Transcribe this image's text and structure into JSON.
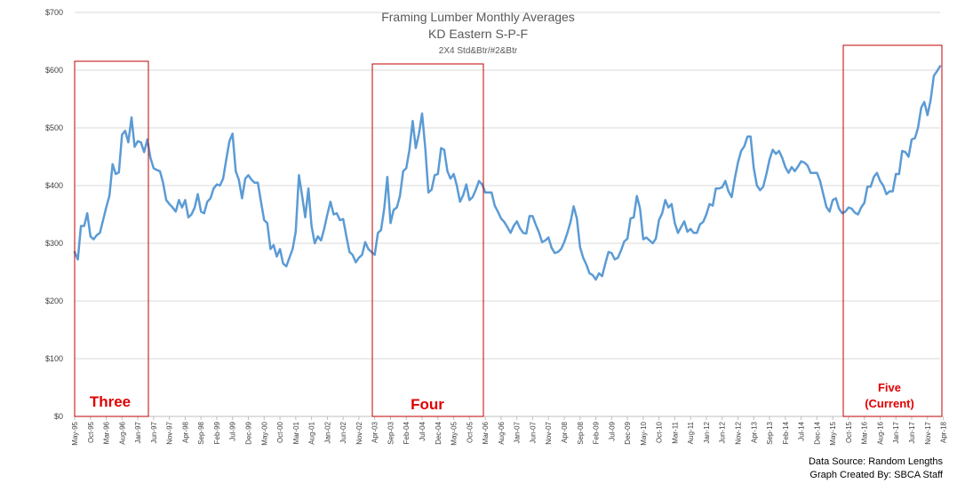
{
  "chart_data": {
    "type": "line",
    "title": "Framing Lumber Monthly Averages",
    "subtitle": "KD Eastern S-P-F",
    "subtitle2": "2X4 Std&Btr/#2&Btr",
    "ylim": [
      0,
      700
    ],
    "ytick_labels": [
      "$0",
      "$100",
      "$200",
      "$300",
      "$400",
      "$500",
      "$600",
      "$700"
    ],
    "xtick_labels": [
      "May-95",
      "Oct-95",
      "Mar-96",
      "Aug-96",
      "Jan-97",
      "Jun-97",
      "Nov-97",
      "Apr-98",
      "Sep-98",
      "Feb-99",
      "Jul-99",
      "Dec-99",
      "May-00",
      "Oct-00",
      "Mar-01",
      "Aug-01",
      "Jan-02",
      "Jun-02",
      "Nov-02",
      "Apr-03",
      "Sep-03",
      "Feb-04",
      "Jul-04",
      "Dec-04",
      "May-05",
      "Oct-05",
      "Mar-06",
      "Aug-06",
      "Jan-07",
      "Jun-07",
      "Nov-07",
      "Apr-08",
      "Sep-08",
      "Feb-09",
      "Jul-09",
      "Dec-09",
      "May-10",
      "Oct-10",
      "Mar-11",
      "Aug-11",
      "Jan-12",
      "Jun-12",
      "Nov-12",
      "Apr-13",
      "Sep-13",
      "Feb-14",
      "Jul-14",
      "Dec-14",
      "May-15",
      "Oct-15",
      "Mar-16",
      "Aug-16",
      "Jan-17",
      "Jun-17",
      "Nov-17",
      "Apr-18"
    ],
    "grid": true,
    "series": [
      {
        "color": "#5b9bd5",
        "keypoints": [
          [
            0,
            285
          ],
          [
            1,
            272
          ],
          [
            2,
            330
          ],
          [
            3,
            330
          ],
          [
            4,
            352
          ],
          [
            5,
            312
          ],
          [
            6,
            307
          ],
          [
            7,
            314
          ],
          [
            8,
            318
          ],
          [
            9,
            340
          ],
          [
            10,
            362
          ],
          [
            11,
            382
          ],
          [
            12,
            437
          ],
          [
            13,
            420
          ],
          [
            14,
            423
          ],
          [
            15,
            488
          ],
          [
            16,
            495
          ],
          [
            17,
            475
          ],
          [
            18,
            518
          ],
          [
            19,
            467
          ],
          [
            20,
            477
          ],
          [
            21,
            475
          ],
          [
            22,
            458
          ],
          [
            23,
            480
          ],
          [
            24,
            448
          ],
          [
            25,
            430
          ],
          [
            26,
            427
          ],
          [
            27,
            425
          ],
          [
            28,
            405
          ],
          [
            29,
            375
          ],
          [
            30,
            368
          ],
          [
            31,
            362
          ],
          [
            32,
            355
          ],
          [
            33,
            375
          ],
          [
            34,
            362
          ],
          [
            35,
            375
          ],
          [
            36,
            345
          ],
          [
            37,
            350
          ],
          [
            38,
            362
          ],
          [
            39,
            385
          ],
          [
            40,
            355
          ],
          [
            41,
            352
          ],
          [
            42,
            372
          ],
          [
            43,
            378
          ],
          [
            44,
            395
          ],
          [
            45,
            402
          ],
          [
            46,
            400
          ],
          [
            47,
            412
          ],
          [
            48,
            445
          ],
          [
            49,
            477
          ],
          [
            50,
            490
          ],
          [
            51,
            425
          ],
          [
            52,
            410
          ],
          [
            53,
            378
          ],
          [
            54,
            412
          ],
          [
            55,
            418
          ],
          [
            56,
            410
          ],
          [
            57,
            405
          ],
          [
            58,
            405
          ],
          [
            59,
            372
          ],
          [
            60,
            340
          ],
          [
            61,
            335
          ],
          [
            62,
            290
          ],
          [
            63,
            297
          ],
          [
            64,
            277
          ],
          [
            65,
            290
          ],
          [
            66,
            265
          ],
          [
            67,
            260
          ],
          [
            68,
            275
          ],
          [
            69,
            290
          ],
          [
            70,
            320
          ],
          [
            71,
            418
          ],
          [
            72,
            383
          ],
          [
            73,
            345
          ],
          [
            74,
            395
          ],
          [
            75,
            330
          ],
          [
            76,
            300
          ],
          [
            77,
            312
          ],
          [
            78,
            305
          ],
          [
            79,
            325
          ],
          [
            80,
            350
          ],
          [
            81,
            372
          ],
          [
            82,
            350
          ],
          [
            83,
            352
          ],
          [
            84,
            340
          ],
          [
            85,
            342
          ],
          [
            86,
            313
          ],
          [
            87,
            285
          ],
          [
            88,
            280
          ],
          [
            89,
            267
          ],
          [
            90,
            275
          ],
          [
            91,
            280
          ],
          [
            92,
            302
          ],
          [
            93,
            290
          ],
          [
            94,
            285
          ],
          [
            95,
            280
          ],
          [
            96,
            318
          ],
          [
            97,
            323
          ],
          [
            98,
            360
          ],
          [
            99,
            415
          ],
          [
            100,
            335
          ],
          [
            101,
            358
          ],
          [
            102,
            362
          ],
          [
            103,
            382
          ],
          [
            104,
            425
          ],
          [
            105,
            430
          ],
          [
            106,
            462
          ],
          [
            107,
            512
          ],
          [
            108,
            465
          ],
          [
            109,
            490
          ],
          [
            110,
            525
          ],
          [
            111,
            465
          ],
          [
            112,
            388
          ],
          [
            113,
            393
          ],
          [
            114,
            418
          ],
          [
            115,
            420
          ],
          [
            116,
            465
          ],
          [
            117,
            462
          ],
          [
            118,
            425
          ],
          [
            119,
            412
          ],
          [
            120,
            420
          ],
          [
            121,
            400
          ],
          [
            122,
            372
          ],
          [
            123,
            383
          ],
          [
            124,
            402
          ],
          [
            125,
            375
          ],
          [
            126,
            380
          ],
          [
            127,
            393
          ],
          [
            128,
            408
          ],
          [
            129,
            402
          ],
          [
            130,
            388
          ],
          [
            131,
            388
          ],
          [
            132,
            388
          ],
          [
            133,
            365
          ],
          [
            134,
            355
          ],
          [
            135,
            343
          ],
          [
            136,
            337
          ],
          [
            137,
            328
          ],
          [
            138,
            318
          ],
          [
            139,
            330
          ],
          [
            140,
            338
          ],
          [
            141,
            326
          ],
          [
            142,
            318
          ],
          [
            143,
            317
          ],
          [
            144,
            347
          ],
          [
            145,
            347
          ],
          [
            146,
            332
          ],
          [
            147,
            319
          ],
          [
            148,
            302
          ],
          [
            149,
            305
          ],
          [
            150,
            310
          ],
          [
            151,
            292
          ],
          [
            152,
            283
          ],
          [
            153,
            285
          ],
          [
            154,
            290
          ],
          [
            155,
            302
          ],
          [
            156,
            318
          ],
          [
            157,
            337
          ],
          [
            158,
            364
          ],
          [
            159,
            343
          ],
          [
            160,
            293
          ],
          [
            161,
            275
          ],
          [
            162,
            263
          ],
          [
            163,
            248
          ],
          [
            164,
            245
          ],
          [
            165,
            237
          ],
          [
            166,
            248
          ],
          [
            167,
            243
          ],
          [
            168,
            265
          ],
          [
            169,
            285
          ],
          [
            170,
            283
          ],
          [
            171,
            272
          ],
          [
            172,
            275
          ],
          [
            173,
            288
          ],
          [
            174,
            303
          ],
          [
            175,
            308
          ],
          [
            176,
            343
          ],
          [
            177,
            345
          ],
          [
            178,
            382
          ],
          [
            179,
            360
          ],
          [
            180,
            307
          ],
          [
            181,
            310
          ],
          [
            182,
            305
          ],
          [
            183,
            300
          ],
          [
            184,
            308
          ],
          [
            185,
            340
          ],
          [
            186,
            352
          ],
          [
            187,
            375
          ],
          [
            188,
            362
          ],
          [
            189,
            368
          ],
          [
            190,
            335
          ],
          [
            191,
            318
          ],
          [
            192,
            328
          ],
          [
            193,
            338
          ],
          [
            194,
            320
          ],
          [
            195,
            325
          ],
          [
            196,
            318
          ],
          [
            197,
            318
          ],
          [
            198,
            333
          ],
          [
            199,
            337
          ],
          [
            200,
            350
          ],
          [
            201,
            368
          ],
          [
            202,
            365
          ],
          [
            203,
            395
          ],
          [
            204,
            395
          ],
          [
            205,
            397
          ],
          [
            206,
            408
          ],
          [
            207,
            390
          ],
          [
            208,
            380
          ],
          [
            209,
            412
          ],
          [
            210,
            440
          ],
          [
            211,
            460
          ],
          [
            212,
            468
          ],
          [
            213,
            485
          ],
          [
            214,
            485
          ],
          [
            215,
            430
          ],
          [
            216,
            400
          ],
          [
            217,
            392
          ],
          [
            218,
            398
          ],
          [
            219,
            420
          ],
          [
            220,
            445
          ],
          [
            221,
            462
          ],
          [
            222,
            455
          ],
          [
            223,
            460
          ],
          [
            224,
            448
          ],
          [
            225,
            432
          ],
          [
            226,
            422
          ],
          [
            227,
            432
          ],
          [
            228,
            425
          ],
          [
            229,
            433
          ],
          [
            230,
            442
          ],
          [
            231,
            440
          ],
          [
            232,
            435
          ],
          [
            233,
            422
          ],
          [
            234,
            422
          ],
          [
            235,
            422
          ],
          [
            236,
            408
          ],
          [
            237,
            385
          ],
          [
            238,
            363
          ],
          [
            239,
            355
          ],
          [
            240,
            375
          ],
          [
            241,
            378
          ],
          [
            242,
            360
          ],
          [
            243,
            352
          ],
          [
            244,
            355
          ],
          [
            245,
            362
          ],
          [
            246,
            360
          ],
          [
            247,
            353
          ],
          [
            248,
            350
          ],
          [
            249,
            362
          ],
          [
            250,
            370
          ],
          [
            251,
            398
          ],
          [
            252,
            398
          ],
          [
            253,
            415
          ],
          [
            254,
            422
          ],
          [
            255,
            408
          ],
          [
            256,
            400
          ],
          [
            257,
            385
          ],
          [
            258,
            390
          ],
          [
            259,
            390
          ],
          [
            260,
            420
          ],
          [
            261,
            420
          ],
          [
            262,
            460
          ],
          [
            263,
            458
          ],
          [
            264,
            450
          ],
          [
            265,
            480
          ],
          [
            266,
            482
          ],
          [
            267,
            500
          ],
          [
            268,
            535
          ],
          [
            269,
            545
          ],
          [
            270,
            522
          ],
          [
            271,
            548
          ],
          [
            272,
            590
          ],
          [
            273,
            598
          ],
          [
            274,
            607
          ]
        ]
      }
    ],
    "cycles": [
      {
        "label": "Three"
      },
      {
        "label": "Four"
      },
      {
        "label": "Five",
        "label_line2": "(Current)"
      }
    ]
  },
  "footer": {
    "source": "Data Source: Random Lengths",
    "credit": "Graph Created By: SBCA Staff"
  }
}
